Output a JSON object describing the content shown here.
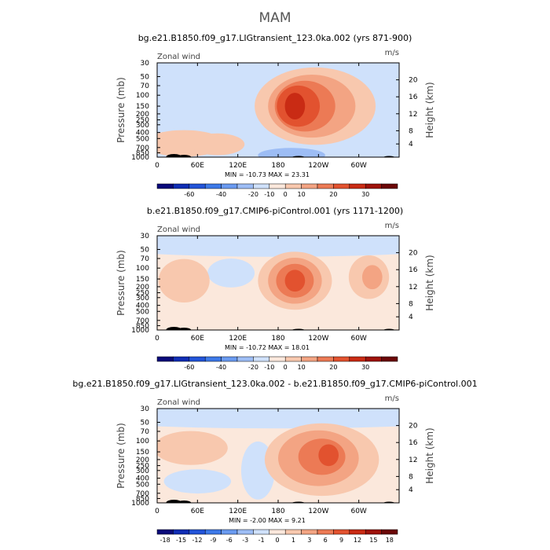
{
  "title": "MAM",
  "colorbars": {
    "full": {
      "colors": [
        "#08087a",
        "#0f2db4",
        "#2254d8",
        "#3d79e8",
        "#6a9af0",
        "#9dbdf5",
        "#cfe1fb",
        "#fbe8dc",
        "#f8c8ae",
        "#f3a483",
        "#ec7a55",
        "#e2522f",
        "#c92b14",
        "#9e1209",
        "#6b0505"
      ],
      "labels": [
        "-60",
        "-40",
        "-20",
        "-10",
        "0",
        "10",
        "20",
        "30"
      ]
    },
    "diff": {
      "colors": [
        "#08087a",
        "#0f2db4",
        "#2254d8",
        "#3d79e8",
        "#6a9af0",
        "#9dbdf5",
        "#cfe1fb",
        "#fbe8dc",
        "#f8c8ae",
        "#f3a483",
        "#ec7a55",
        "#e2522f",
        "#c92b14",
        "#9e1209",
        "#6b0505"
      ],
      "labels": [
        "-18",
        "-15",
        "-12",
        "-9",
        "-6",
        "-3",
        "-1",
        "0",
        "1",
        "3",
        "6",
        "9",
        "12",
        "15",
        "18"
      ]
    }
  },
  "chart_data": [
    {
      "type": "heatmap",
      "title": "bg.e21.B1850.f09_g17.LIGtransient_123.0ka.002 (yrs 871-900)",
      "left_label": "Zonal wind",
      "units": "m/s",
      "ylabel": "Pressure (mb)",
      "ylabel_right": "Height (km)",
      "xlim": [
        0,
        360
      ],
      "x_ticks": [
        "0",
        "60E",
        "120E",
        "180",
        "120W",
        "60W"
      ],
      "y_ticks": [
        "30",
        "50",
        "70",
        "100",
        "150",
        "200",
        "250",
        "300",
        "400",
        "500",
        "700",
        "850",
        "1000"
      ],
      "y_ticks_right": [
        "20",
        "16",
        "12",
        "8",
        "4"
      ],
      "stats": "MIN = -10.73   MAX =  23.31",
      "colorbar": "full",
      "field": {
        "background": 6,
        "blobs": [
          {
            "lon": 235,
            "p": 150,
            "rlon": 90,
            "rp": 1.6,
            "level": 8
          },
          {
            "lon": 230,
            "p": 150,
            "rlon": 65,
            "rp": 1.3,
            "level": 9
          },
          {
            "lon": 220,
            "p": 150,
            "rlon": 45,
            "rp": 1.05,
            "level": 10
          },
          {
            "lon": 210,
            "p": 150,
            "rlon": 32,
            "rp": 0.85,
            "level": 11
          },
          {
            "lon": 205,
            "p": 150,
            "rlon": 15,
            "rp": 0.55,
            "level": 12
          },
          {
            "lon": 40,
            "p": 600,
            "rlon": 60,
            "rp": 0.55,
            "level": 8
          },
          {
            "lon": 90,
            "p": 620,
            "rlon": 40,
            "rp": 0.45,
            "level": 8
          }
        ],
        "lows": [
          {
            "lon": 200,
            "p": 930,
            "rlon": 50,
            "rp": 0.3,
            "level": 5
          }
        ]
      }
    },
    {
      "type": "heatmap",
      "title": "b.e21.B1850.f09_g17.CMIP6-piControl.001 (yrs 1171-1200)",
      "left_label": "Zonal wind",
      "units": "m/s",
      "ylabel": "Pressure (mb)",
      "ylabel_right": "Height (km)",
      "xlim": [
        0,
        360
      ],
      "x_ticks": [
        "0",
        "60E",
        "120E",
        "180",
        "120W",
        "60W"
      ],
      "y_ticks": [
        "30",
        "50",
        "70",
        "100",
        "150",
        "200",
        "250",
        "300",
        "400",
        "500",
        "700",
        "850",
        "1000"
      ],
      "y_ticks_right": [
        "20",
        "16",
        "12",
        "8",
        "4"
      ],
      "stats": "MIN = -10.72   MAX =  18.01",
      "colorbar": "full",
      "field": {
        "background": 7,
        "blobs": [
          {
            "lon": 205,
            "p": 160,
            "rlon": 55,
            "rp": 1.2,
            "level": 8
          },
          {
            "lon": 205,
            "p": 160,
            "rlon": 40,
            "rp": 0.95,
            "level": 9
          },
          {
            "lon": 205,
            "p": 160,
            "rlon": 28,
            "rp": 0.7,
            "level": 10
          },
          {
            "lon": 205,
            "p": 160,
            "rlon": 15,
            "rp": 0.45,
            "level": 11
          },
          {
            "lon": 315,
            "p": 140,
            "rlon": 30,
            "rp": 0.9,
            "level": 8
          },
          {
            "lon": 320,
            "p": 140,
            "rlon": 15,
            "rp": 0.5,
            "level": 9
          },
          {
            "lon": 40,
            "p": 160,
            "rlon": 38,
            "rp": 0.9,
            "level": 8
          }
        ],
        "lows": [
          {
            "lon": 180,
            "p": 40,
            "rlon": 300,
            "rp": 0.55,
            "level": 6
          },
          {
            "lon": 110,
            "p": 120,
            "rlon": 35,
            "rp": 0.6,
            "level": 6
          }
        ]
      }
    },
    {
      "type": "heatmap",
      "title": "bg.e21.B1850.f09_g17.LIGtransient_123.0ka.002 - b.e21.B1850.f09_g17.CMIP6-piControl.001",
      "left_label": "Zonal wind",
      "units": "m/s",
      "ylabel": "Pressure (mb)",
      "ylabel_right": "Height (km)",
      "xlim": [
        0,
        360
      ],
      "x_ticks": [
        "0",
        "60E",
        "120E",
        "180",
        "120W",
        "60W"
      ],
      "y_ticks": [
        "30",
        "50",
        "70",
        "100",
        "150",
        "200",
        "250",
        "300",
        "400",
        "500",
        "700",
        "850",
        "1000"
      ],
      "y_ticks_right": [
        "20",
        "16",
        "12",
        "8",
        "4"
      ],
      "stats": "MIN = -2.00   MAX =  9.21",
      "colorbar": "diff",
      "field": {
        "background": 7,
        "blobs": [
          {
            "lon": 245,
            "p": 200,
            "rlon": 85,
            "rp": 1.5,
            "level": 8
          },
          {
            "lon": 240,
            "p": 190,
            "rlon": 60,
            "rp": 1.15,
            "level": 9
          },
          {
            "lon": 245,
            "p": 180,
            "rlon": 35,
            "rp": 0.75,
            "level": 10
          },
          {
            "lon": 255,
            "p": 170,
            "rlon": 15,
            "rp": 0.45,
            "level": 11
          },
          {
            "lon": 50,
            "p": 130,
            "rlon": 55,
            "rp": 0.7,
            "level": 8
          }
        ],
        "lows": [
          {
            "lon": 180,
            "p": 40,
            "rlon": 320,
            "rp": 0.5,
            "level": 6
          },
          {
            "lon": 150,
            "p": 300,
            "rlon": 25,
            "rp": 1.2,
            "level": 6
          },
          {
            "lon": 60,
            "p": 450,
            "rlon": 50,
            "rp": 0.5,
            "level": 6
          }
        ]
      }
    }
  ]
}
